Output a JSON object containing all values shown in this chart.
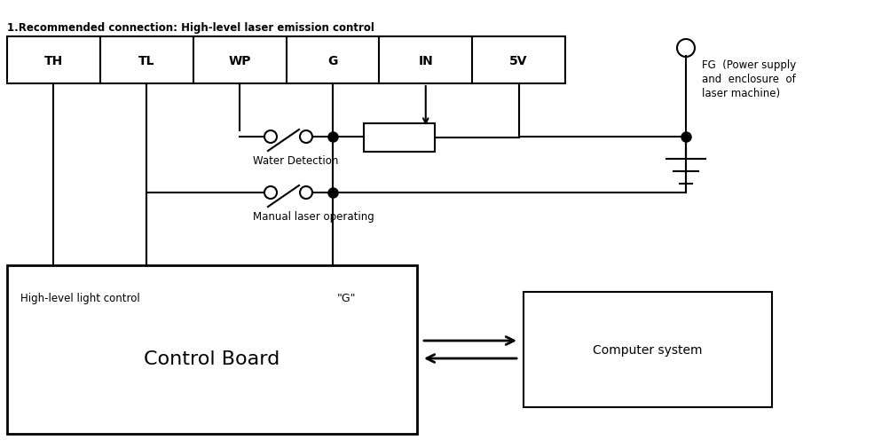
{
  "title": "1.Recommended connection: High-level laser emission control",
  "connector_labels": [
    "TH",
    "TL",
    "WP",
    "G",
    "IN",
    "5V"
  ],
  "bg_color": "#ffffff",
  "line_color": "#000000",
  "control_board_label": "Control Board",
  "control_board_sublabel": "High-level light control",
  "control_board_g": "\"G\"",
  "computer_label": "Computer system",
  "water_detection_label": "Water Detection",
  "manual_laser_label": "Manual laser operating",
  "fg_line1": "FG  (Power supply",
  "fg_line2": "and  enclosure  of",
  "fg_line3": "laser machine)"
}
